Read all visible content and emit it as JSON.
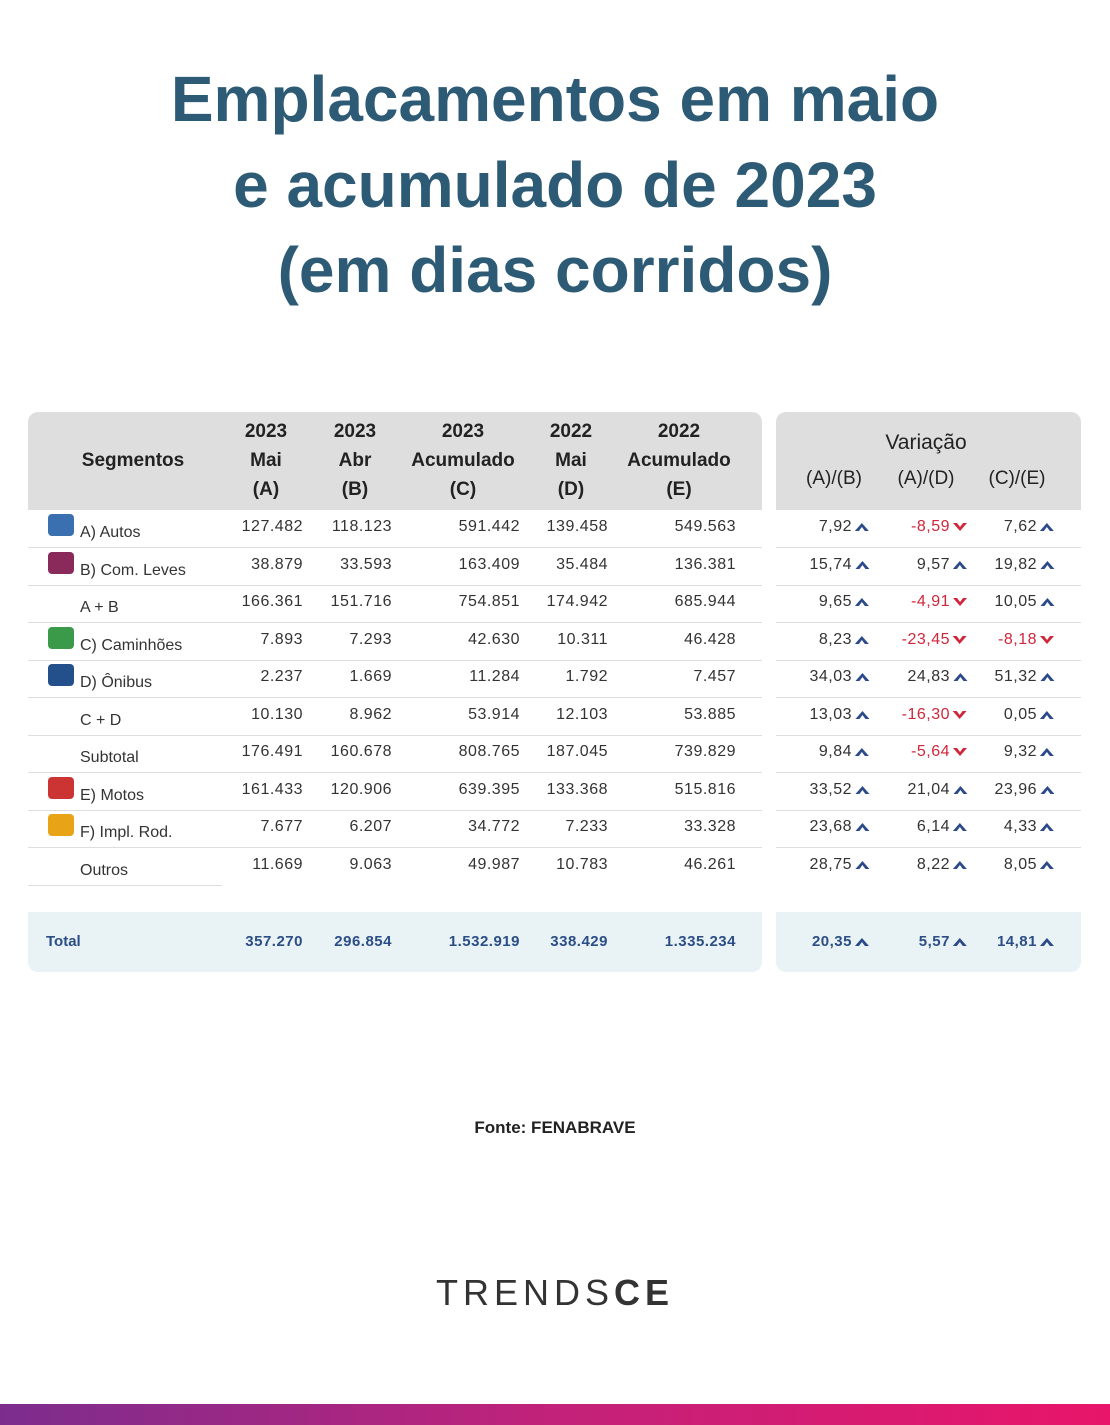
{
  "header": {
    "title_lines": [
      "Emplacamentos em maio",
      "e acumulado de 2023",
      "(em dias corridos)"
    ]
  },
  "table": {
    "segment_header": "Segmentos",
    "columns": [
      [
        "2023",
        "Mai",
        "(A)"
      ],
      [
        "2023",
        "Abr",
        "(B)"
      ],
      [
        "2023",
        "Acumulado",
        "(C)"
      ],
      [
        "2022",
        "Mai",
        "(D)"
      ],
      [
        "2022",
        "Acumulado",
        "(E)"
      ]
    ],
    "variation_title": "Variação",
    "variation_columns": [
      "(A)/(B)",
      "(A)/(D)",
      "(C)/(E)"
    ],
    "rows": [
      {
        "segment": "A) Autos",
        "values": [
          "127.482",
          "118.123",
          "591.442",
          "139.458",
          "549.563"
        ],
        "variation": [
          "7,92",
          "-8,59",
          "7,62"
        ]
      },
      {
        "segment": "B) Com. Leves",
        "values": [
          "38.879",
          "33.593",
          "163.409",
          "35.484",
          "136.381"
        ],
        "variation": [
          "15,74",
          "9,57",
          "19,82"
        ]
      },
      {
        "segment": "A + B",
        "values": [
          "166.361",
          "151.716",
          "754.851",
          "174.942",
          "685.944"
        ],
        "variation": [
          "9,65",
          "-4,91",
          "10,05"
        ]
      },
      {
        "segment": "C) Caminhões",
        "values": [
          "7.893",
          "7.293",
          "42.630",
          "10.311",
          "46.428"
        ],
        "variation": [
          "8,23",
          "-23,45",
          "-8,18"
        ]
      },
      {
        "segment": "D) Ônibus",
        "values": [
          "2.237",
          "1.669",
          "11.284",
          "1.792",
          "7.457"
        ],
        "variation": [
          "34,03",
          "24,83",
          "51,32"
        ]
      },
      {
        "segment": "C + D",
        "values": [
          "10.130",
          "8.962",
          "53.914",
          "12.103",
          "53.885"
        ],
        "variation": [
          "13,03",
          "-16,30",
          "0,05"
        ]
      },
      {
        "segment": "Subtotal",
        "values": [
          "176.491",
          "160.678",
          "808.765",
          "187.045",
          "739.829"
        ],
        "variation": [
          "9,84",
          "-5,64",
          "9,32"
        ]
      },
      {
        "segment": "E) Motos",
        "values": [
          "161.433",
          "120.906",
          "639.395",
          "133.368",
          "515.816"
        ],
        "variation": [
          "33,52",
          "21,04",
          "23,96"
        ]
      },
      {
        "segment": "F) Impl. Rod.",
        "values": [
          "7.677",
          "6.207",
          "34.772",
          "7.233",
          "33.328"
        ],
        "variation": [
          "23,68",
          "6,14",
          "4,33"
        ]
      },
      {
        "segment": "Outros",
        "values": [
          "11.669",
          "9.063",
          "49.987",
          "10.783",
          "46.261"
        ],
        "variation": [
          "28,75",
          "8,22",
          "8,05"
        ]
      }
    ],
    "total": {
      "segment": "Total",
      "values": [
        "357.270",
        "296.854",
        "1.532.919",
        "338.429",
        "1.335.234"
      ],
      "variation": [
        "20,35",
        "5,57",
        "14,81"
      ]
    }
  },
  "footer": {
    "source": "Fonte: FENABRAVE",
    "logo_light": "TRENDS",
    "logo_bold": "CE"
  }
}
